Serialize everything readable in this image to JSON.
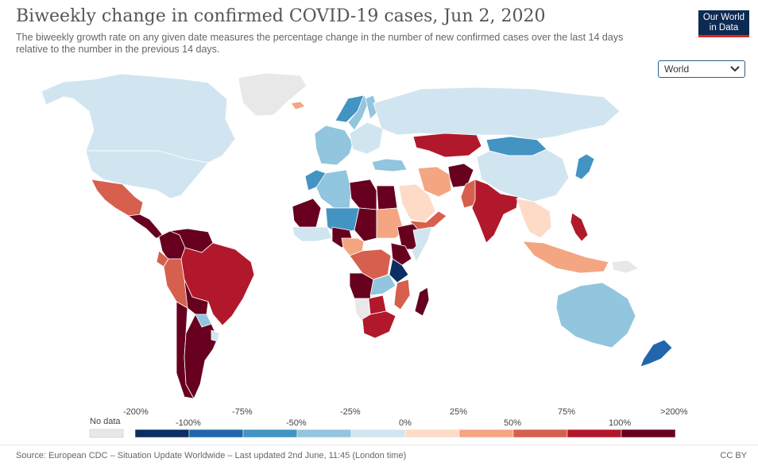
{
  "header": {
    "title": "Biweekly change in confirmed COVID-19 cases, Jun 2, 2020",
    "subtitle": "The biweekly growth rate on any given date measures the percentage change in the number of new confirmed cases over the last 14 days relative to the number in the previous 14 days.",
    "logo_line1": "Our World",
    "logo_line2": "in Data"
  },
  "controls": {
    "region_selected": "World"
  },
  "colors": {
    "no_data": "#e8e8e8",
    "ocean": "#ffffff",
    "bins": [
      "#0b2f63",
      "#2166ac",
      "#4393c3",
      "#92c5de",
      "#d1e5f0",
      "#fddbc7",
      "#f4a582",
      "#d6604d",
      "#b2182b",
      "#67001f"
    ]
  },
  "legend": {
    "no_data_label": "No data",
    "upper_labels": [
      "-200%",
      "-75%",
      "-25%",
      "25%",
      "75%",
      ">200%"
    ],
    "lower_labels": [
      "-100%",
      "-50%",
      "0%",
      "50%",
      "100%"
    ]
  },
  "map_regions": [
    {
      "name": "Greenland",
      "bin": "no_data"
    },
    {
      "name": "Canada",
      "bin": 4
    },
    {
      "name": "United States",
      "bin": 4
    },
    {
      "name": "Mexico",
      "bin": 7
    },
    {
      "name": "Central America",
      "bin": 9
    },
    {
      "name": "Colombia",
      "bin": 9
    },
    {
      "name": "Venezuela",
      "bin": 9
    },
    {
      "name": "Ecuador",
      "bin": 7
    },
    {
      "name": "Peru",
      "bin": 7
    },
    {
      "name": "Brazil",
      "bin": 8
    },
    {
      "name": "Bolivia",
      "bin": 9
    },
    {
      "name": "Paraguay",
      "bin": 3
    },
    {
      "name": "Chile",
      "bin": 9
    },
    {
      "name": "Argentina",
      "bin": 9
    },
    {
      "name": "Uruguay",
      "bin": 4
    },
    {
      "name": "Iceland",
      "bin": 6
    },
    {
      "name": "Norway",
      "bin": 2
    },
    {
      "name": "Sweden",
      "bin": 3
    },
    {
      "name": "Finland",
      "bin": 3
    },
    {
      "name": "Western Europe",
      "bin": 3
    },
    {
      "name": "Eastern Europe",
      "bin": 4
    },
    {
      "name": "Russia",
      "bin": 4
    },
    {
      "name": "Kazakhstan",
      "bin": 8
    },
    {
      "name": "Mongolia",
      "bin": 2
    },
    {
      "name": "China",
      "bin": 4
    },
    {
      "name": "Japan",
      "bin": 2
    },
    {
      "name": "Turkey",
      "bin": 3
    },
    {
      "name": "Iran",
      "bin": 6
    },
    {
      "name": "Afghanistan",
      "bin": 9
    },
    {
      "name": "Pakistan",
      "bin": 7
    },
    {
      "name": "India",
      "bin": 8
    },
    {
      "name": "Saudi Arabia",
      "bin": 5
    },
    {
      "name": "Yemen",
      "bin": 7
    },
    {
      "name": "Southeast Asia",
      "bin": 5
    },
    {
      "name": "Philippines",
      "bin": 8
    },
    {
      "name": "Indonesia",
      "bin": 6
    },
    {
      "name": "Papua New Guinea",
      "bin": "no_data"
    },
    {
      "name": "Australia",
      "bin": 3
    },
    {
      "name": "New Zealand",
      "bin": 1
    },
    {
      "name": "Morocco",
      "bin": 2
    },
    {
      "name": "Algeria",
      "bin": 3
    },
    {
      "name": "Libya",
      "bin": 9
    },
    {
      "name": "Egypt",
      "bin": 9
    },
    {
      "name": "Mali",
      "bin": 9
    },
    {
      "name": "Niger",
      "bin": 2
    },
    {
      "name": "Chad",
      "bin": 9
    },
    {
      "name": "Sudan",
      "bin": 6
    },
    {
      "name": "Ethiopia",
      "bin": 9
    },
    {
      "name": "Somalia",
      "bin": 4
    },
    {
      "name": "West Africa coast",
      "bin": 4
    },
    {
      "name": "Nigeria",
      "bin": 9
    },
    {
      "name": "Cameroon",
      "bin": 6
    },
    {
      "name": "DR Congo",
      "bin": 7
    },
    {
      "name": "Kenya",
      "bin": 9
    },
    {
      "name": "Tanzania",
      "bin": 0
    },
    {
      "name": "Angola",
      "bin": 9
    },
    {
      "name": "Zambia",
      "bin": 3
    },
    {
      "name": "Mozambique",
      "bin": 7
    },
    {
      "name": "Namibia",
      "bin": "no_data"
    },
    {
      "name": "Botswana",
      "bin": 8
    },
    {
      "name": "South Africa",
      "bin": 8
    },
    {
      "name": "Madagascar",
      "bin": 9
    }
  ],
  "footer": {
    "source": "Source: European CDC – Situation Update Worldwide – Last updated 2nd June, 11:45 (London time)",
    "license": "CC BY"
  }
}
